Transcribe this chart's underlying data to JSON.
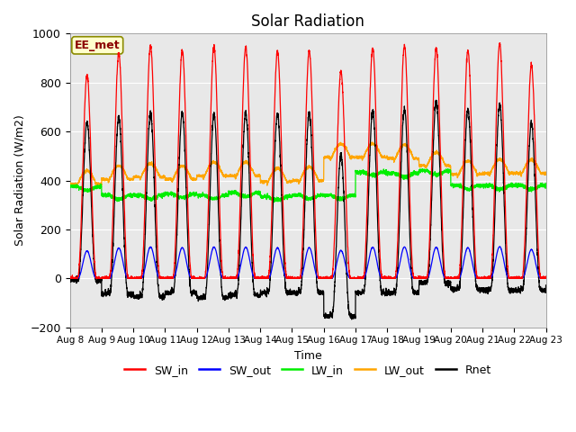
{
  "title": "Solar Radiation",
  "ylabel": "Solar Radiation (W/m2)",
  "xlabel": "Time",
  "ylim": [
    -200,
    1000
  ],
  "bg_color": "#e8e8e8",
  "x_tick_labels": [
    "Aug 8",
    "Aug 9",
    "Aug 10",
    "Aug 11",
    "Aug 12",
    "Aug 13",
    "Aug 14",
    "Aug 15",
    "Aug 16",
    "Aug 17",
    "Aug 18",
    "Aug 19",
    "Aug 20",
    "Aug 21",
    "Aug 22",
    "Aug 23"
  ],
  "annotation": "EE_met",
  "n_days": 15,
  "sw_in_peaks": [
    830,
    920,
    950,
    930,
    945,
    945,
    925,
    930,
    845,
    940,
    950,
    940,
    930,
    960,
    870
  ],
  "lw_in_baselines": [
    375,
    340,
    340,
    345,
    340,
    350,
    335,
    340,
    340,
    435,
    430,
    440,
    380,
    380,
    380
  ],
  "lw_out_baselines": [
    385,
    405,
    415,
    405,
    420,
    420,
    395,
    400,
    495,
    495,
    490,
    460,
    425,
    430,
    430
  ]
}
